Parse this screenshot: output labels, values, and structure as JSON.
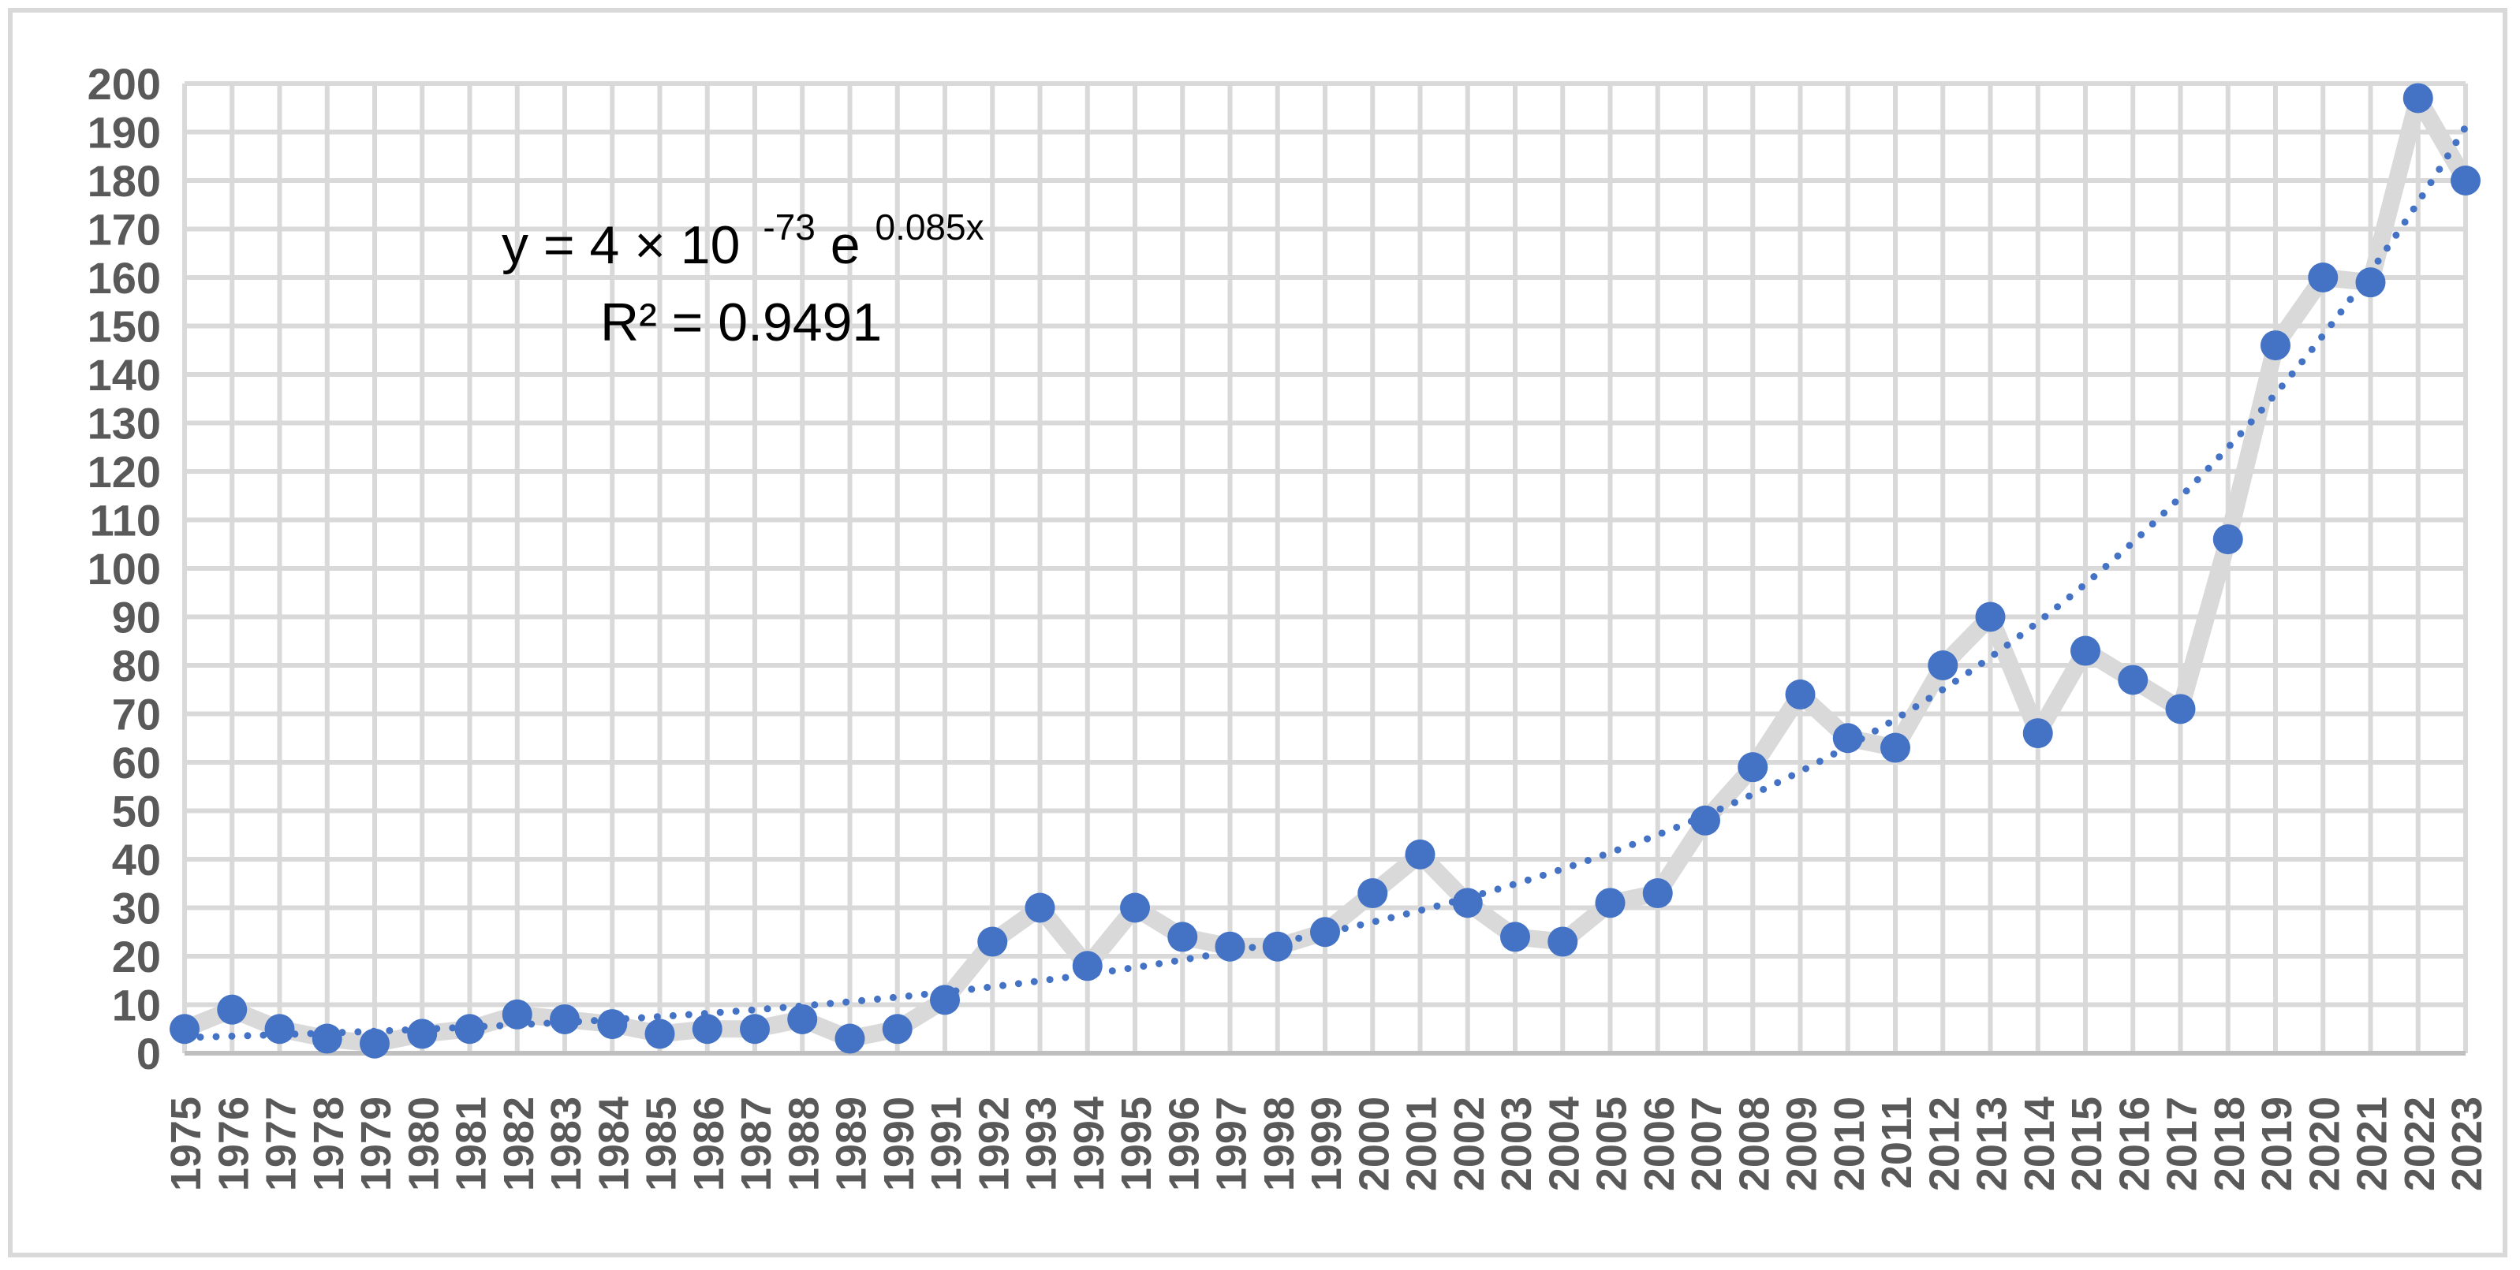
{
  "chart_data": {
    "type": "line",
    "title": "",
    "xlabel": "",
    "ylabel": "",
    "ylim": [
      0,
      200
    ],
    "y_ticks": [
      0,
      10,
      20,
      30,
      40,
      50,
      60,
      70,
      80,
      90,
      100,
      110,
      120,
      130,
      140,
      150,
      160,
      170,
      180,
      190,
      200
    ],
    "x": [
      1975,
      1976,
      1977,
      1978,
      1979,
      1980,
      1981,
      1982,
      1983,
      1984,
      1985,
      1986,
      1987,
      1988,
      1989,
      1990,
      1991,
      1992,
      1993,
      1994,
      1995,
      1996,
      1997,
      1998,
      1999,
      2000,
      2001,
      2002,
      2003,
      2004,
      2005,
      2006,
      2007,
      2008,
      2009,
      2010,
      2011,
      2012,
      2013,
      2014,
      2015,
      2016,
      2017,
      2018,
      2019,
      2020,
      2021,
      2022,
      2023
    ],
    "series": [
      {
        "values": [
          5,
          9,
          5,
          3,
          2,
          4,
          5,
          8,
          7,
          6,
          4,
          5,
          5,
          7,
          3,
          5,
          11,
          23,
          30,
          18,
          30,
          24,
          22,
          22,
          25,
          33,
          41,
          31,
          24,
          23,
          31,
          33,
          48,
          59,
          74,
          65,
          63,
          80,
          90,
          66,
          83,
          77,
          71,
          106,
          146,
          160,
          159,
          197,
          180
        ],
        "line_color": "#d9d9d9",
        "marker_color": "#4472c4"
      }
    ],
    "trendline": {
      "type": "exponential",
      "coefficient": 4e-73,
      "rate": 0.085,
      "color": "#4472c4",
      "style": "dotted",
      "equation": {
        "prefix": "y = 4 × 10",
        "exponent": "-73",
        "base": " e",
        "power": "0.085x"
      },
      "r2_label": "R² = 0.9491"
    },
    "grid": true,
    "legend": "none"
  }
}
